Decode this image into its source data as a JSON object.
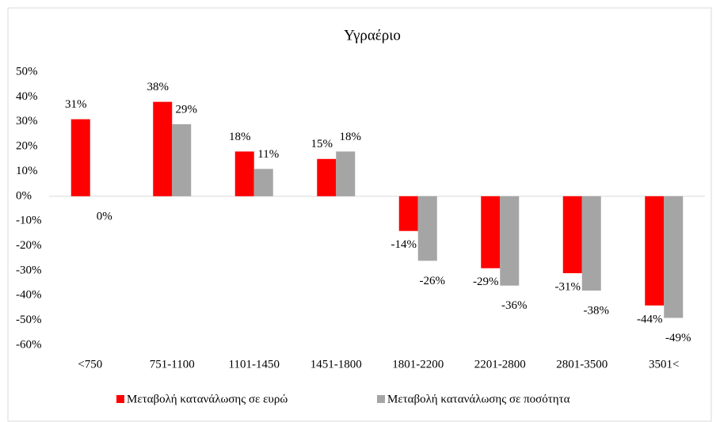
{
  "chart_data": {
    "type": "bar",
    "title": "Υγραέριο",
    "categories": [
      "<750",
      "751-1100",
      "1101-1450",
      "1451-1800",
      "1801-2200",
      "2201-2800",
      "2801-3500",
      "3501<"
    ],
    "series": [
      {
        "name": "Μεταβολή κατανάλωσης σε ευρώ",
        "color": "#ff0000",
        "values": [
          31,
          38,
          18,
          15,
          -14,
          -29,
          -31,
          -44
        ],
        "value_labels": [
          "31%",
          "38%",
          "18%",
          "15%",
          "-14%",
          "-29%",
          "-31%",
          "-44%"
        ]
      },
      {
        "name": "Μεταβολή κατανάλωσης σε ποσότητα",
        "color": "#a5a5a5",
        "values": [
          0,
          29,
          11,
          18,
          -26,
          -36,
          -38,
          -49
        ],
        "value_labels": [
          "0%",
          "29%",
          "11%",
          "18%",
          "-26%",
          "-36%",
          "-38%",
          "-49%"
        ]
      }
    ],
    "ylim": [
      -60,
      50
    ],
    "yticks": [
      {
        "value": 50,
        "label": "50%"
      },
      {
        "value": 40,
        "label": "40%"
      },
      {
        "value": 30,
        "label": "30%"
      },
      {
        "value": 20,
        "label": "20%"
      },
      {
        "value": 10,
        "label": "10%"
      },
      {
        "value": 0,
        "label": "0%"
      },
      {
        "value": -10,
        "label": "-10%"
      },
      {
        "value": -20,
        "label": "-20%"
      },
      {
        "value": -30,
        "label": "-30%"
      },
      {
        "value": -40,
        "label": "-40%"
      },
      {
        "value": -50,
        "label": "-50%"
      },
      {
        "value": -60,
        "label": "-60%"
      }
    ],
    "grid": false,
    "legend": "bottom"
  }
}
